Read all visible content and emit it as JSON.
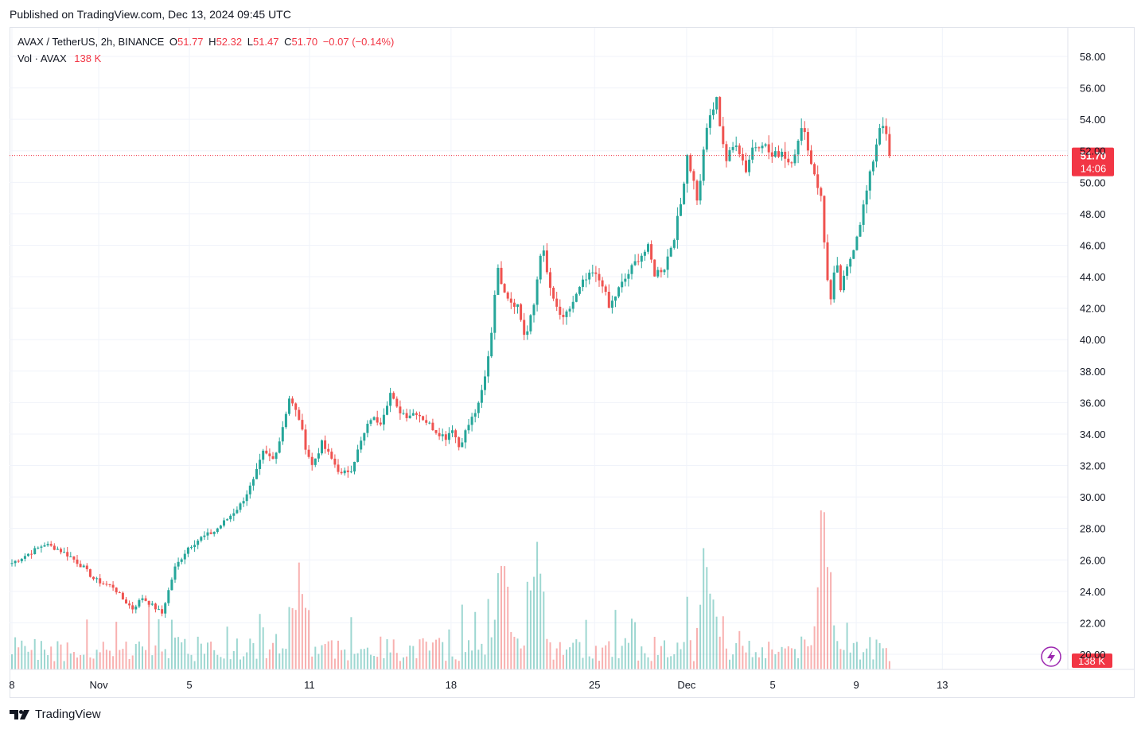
{
  "header": {
    "published": "Published on TradingView.com, Dec 13, 2024 09:45 UTC"
  },
  "legend": {
    "symbol": "AVAX / TetherUS, 2h, BINANCE",
    "o_label": "O",
    "o": "51.77",
    "h_label": "H",
    "h": "52.32",
    "l_label": "L",
    "l": "51.47",
    "c_label": "C",
    "c": "51.70",
    "change": "−0.07 (−0.14%)"
  },
  "volume_legend": {
    "label": "Vol · AVAX",
    "value": "138 K"
  },
  "price_badge": {
    "price": "51.70",
    "countdown": "14:06"
  },
  "volume_badge": "138 K",
  "footer": {
    "brand": "TradingView"
  },
  "colors": {
    "up": "#26a69a",
    "down": "#ef5350",
    "badge": "#f23645",
    "grid": "#f0f3fa"
  },
  "chart_data": {
    "type": "candlestick",
    "timeframe": "2h",
    "y_axis": {
      "ticks": [
        "58.00",
        "56.00",
        "54.00",
        "52.00",
        "50.00",
        "48.00",
        "46.00",
        "44.00",
        "42.00",
        "40.00",
        "38.00",
        "36.00",
        "34.00",
        "32.00",
        "30.00",
        "28.00",
        "26.00",
        "24.00",
        "22.00",
        "20.00"
      ],
      "range": [
        19.5,
        59
      ]
    },
    "x_axis": {
      "ticks": [
        "8",
        "Nov",
        "5",
        "11",
        "18",
        "25",
        "Dec",
        "5",
        "9",
        "13"
      ]
    },
    "last_price": 51.7,
    "price_path": [
      [
        0,
        25.8
      ],
      [
        3,
        26.5
      ],
      [
        5,
        27.0
      ],
      [
        7,
        26.7
      ],
      [
        9,
        26.2
      ],
      [
        11,
        25.5
      ],
      [
        12.5,
        24.8
      ],
      [
        14,
        24.5
      ],
      [
        15.5,
        24.3
      ],
      [
        17,
        23.5
      ],
      [
        18.5,
        22.9
      ],
      [
        20,
        23.6
      ],
      [
        21.5,
        23.1
      ],
      [
        23,
        22.6
      ],
      [
        25,
        25.5
      ],
      [
        27,
        26.8
      ],
      [
        29,
        27.4
      ],
      [
        31,
        27.8
      ],
      [
        33,
        28.6
      ],
      [
        35,
        29.5
      ],
      [
        37,
        31.0
      ],
      [
        38.5,
        32.8
      ],
      [
        40,
        32.4
      ],
      [
        41,
        33.6
      ],
      [
        42.5,
        36.3
      ],
      [
        44,
        35.0
      ],
      [
        45,
        33.2
      ],
      [
        46,
        32.0
      ],
      [
        47.5,
        33.4
      ],
      [
        49,
        32.4
      ],
      [
        50.5,
        31.4
      ],
      [
        52,
        31.8
      ],
      [
        53.5,
        33.5
      ],
      [
        55,
        35.0
      ],
      [
        56.5,
        34.8
      ],
      [
        58,
        36.6
      ],
      [
        59,
        35.6
      ],
      [
        60.5,
        35.2
      ],
      [
        62,
        35.4
      ],
      [
        63.5,
        34.8
      ],
      [
        65,
        34.2
      ],
      [
        66.5,
        33.8
      ],
      [
        67.5,
        34.4
      ],
      [
        68.5,
        33.2
      ],
      [
        70,
        34.6
      ],
      [
        71.5,
        35.8
      ],
      [
        72.5,
        37.6
      ],
      [
        73.5,
        40.5
      ],
      [
        74.3,
        44.6
      ],
      [
        75.3,
        43.4
      ],
      [
        76.3,
        42.5
      ],
      [
        77.5,
        42.2
      ],
      [
        78.7,
        40.0
      ],
      [
        80,
        42.2
      ],
      [
        81.2,
        46.2
      ],
      [
        82,
        44.2
      ],
      [
        83,
        42.4
      ],
      [
        84.5,
        41.2
      ],
      [
        86,
        42.4
      ],
      [
        87.5,
        43.6
      ],
      [
        89,
        44.2
      ],
      [
        90.5,
        43.6
      ],
      [
        91.5,
        42.0
      ],
      [
        93,
        43.2
      ],
      [
        94.5,
        44.2
      ],
      [
        96,
        45.2
      ],
      [
        97.5,
        45.8
      ],
      [
        98.5,
        44.2
      ],
      [
        100,
        44.6
      ],
      [
        101.5,
        46.6
      ],
      [
        102.5,
        48.6
      ],
      [
        103.5,
        51.8
      ],
      [
        104.5,
        50.0
      ],
      [
        105.2,
        48.6
      ],
      [
        106,
        52.2
      ],
      [
        107,
        54.2
      ],
      [
        108,
        55.2
      ],
      [
        108.7,
        53.2
      ],
      [
        109.5,
        51.4
      ],
      [
        111,
        52.6
      ],
      [
        112.5,
        50.8
      ],
      [
        113.5,
        52.2
      ],
      [
        115,
        52.6
      ],
      [
        116.5,
        51.6
      ],
      [
        118,
        52.0
      ],
      [
        119.2,
        51.2
      ],
      [
        120.5,
        52.5
      ],
      [
        121.4,
        53.8
      ],
      [
        122,
        52.0
      ],
      [
        123,
        50.6
      ],
      [
        124,
        49.0
      ],
      [
        124.8,
        44.5
      ],
      [
        125.5,
        42.5
      ],
      [
        126.3,
        45.0
      ],
      [
        127,
        43.2
      ],
      [
        127.8,
        44.2
      ],
      [
        128.8,
        45.6
      ],
      [
        130,
        47.5
      ],
      [
        131.3,
        50.0
      ],
      [
        132.5,
        52.5
      ],
      [
        133.3,
        54.2
      ],
      [
        134,
        52.8
      ],
      [
        134.7,
        51.7
      ]
    ],
    "volume_highlights": [
      [
        124.5,
        7.8
      ],
      [
        75,
        4.5
      ],
      [
        80.6,
        5.2
      ],
      [
        106.5,
        4.8
      ],
      [
        44,
        5.0
      ]
    ],
    "x_tick_positions": [
      [
        0,
        "8"
      ],
      [
        13.3,
        "Nov"
      ],
      [
        27.2,
        "5"
      ],
      [
        45.6,
        "11"
      ],
      [
        67.3,
        "18"
      ],
      [
        89.3,
        "25"
      ],
      [
        103.4,
        "Dec"
      ],
      [
        116.6,
        "5"
      ],
      [
        129.4,
        "9"
      ],
      [
        142.6,
        "13"
      ]
    ]
  }
}
